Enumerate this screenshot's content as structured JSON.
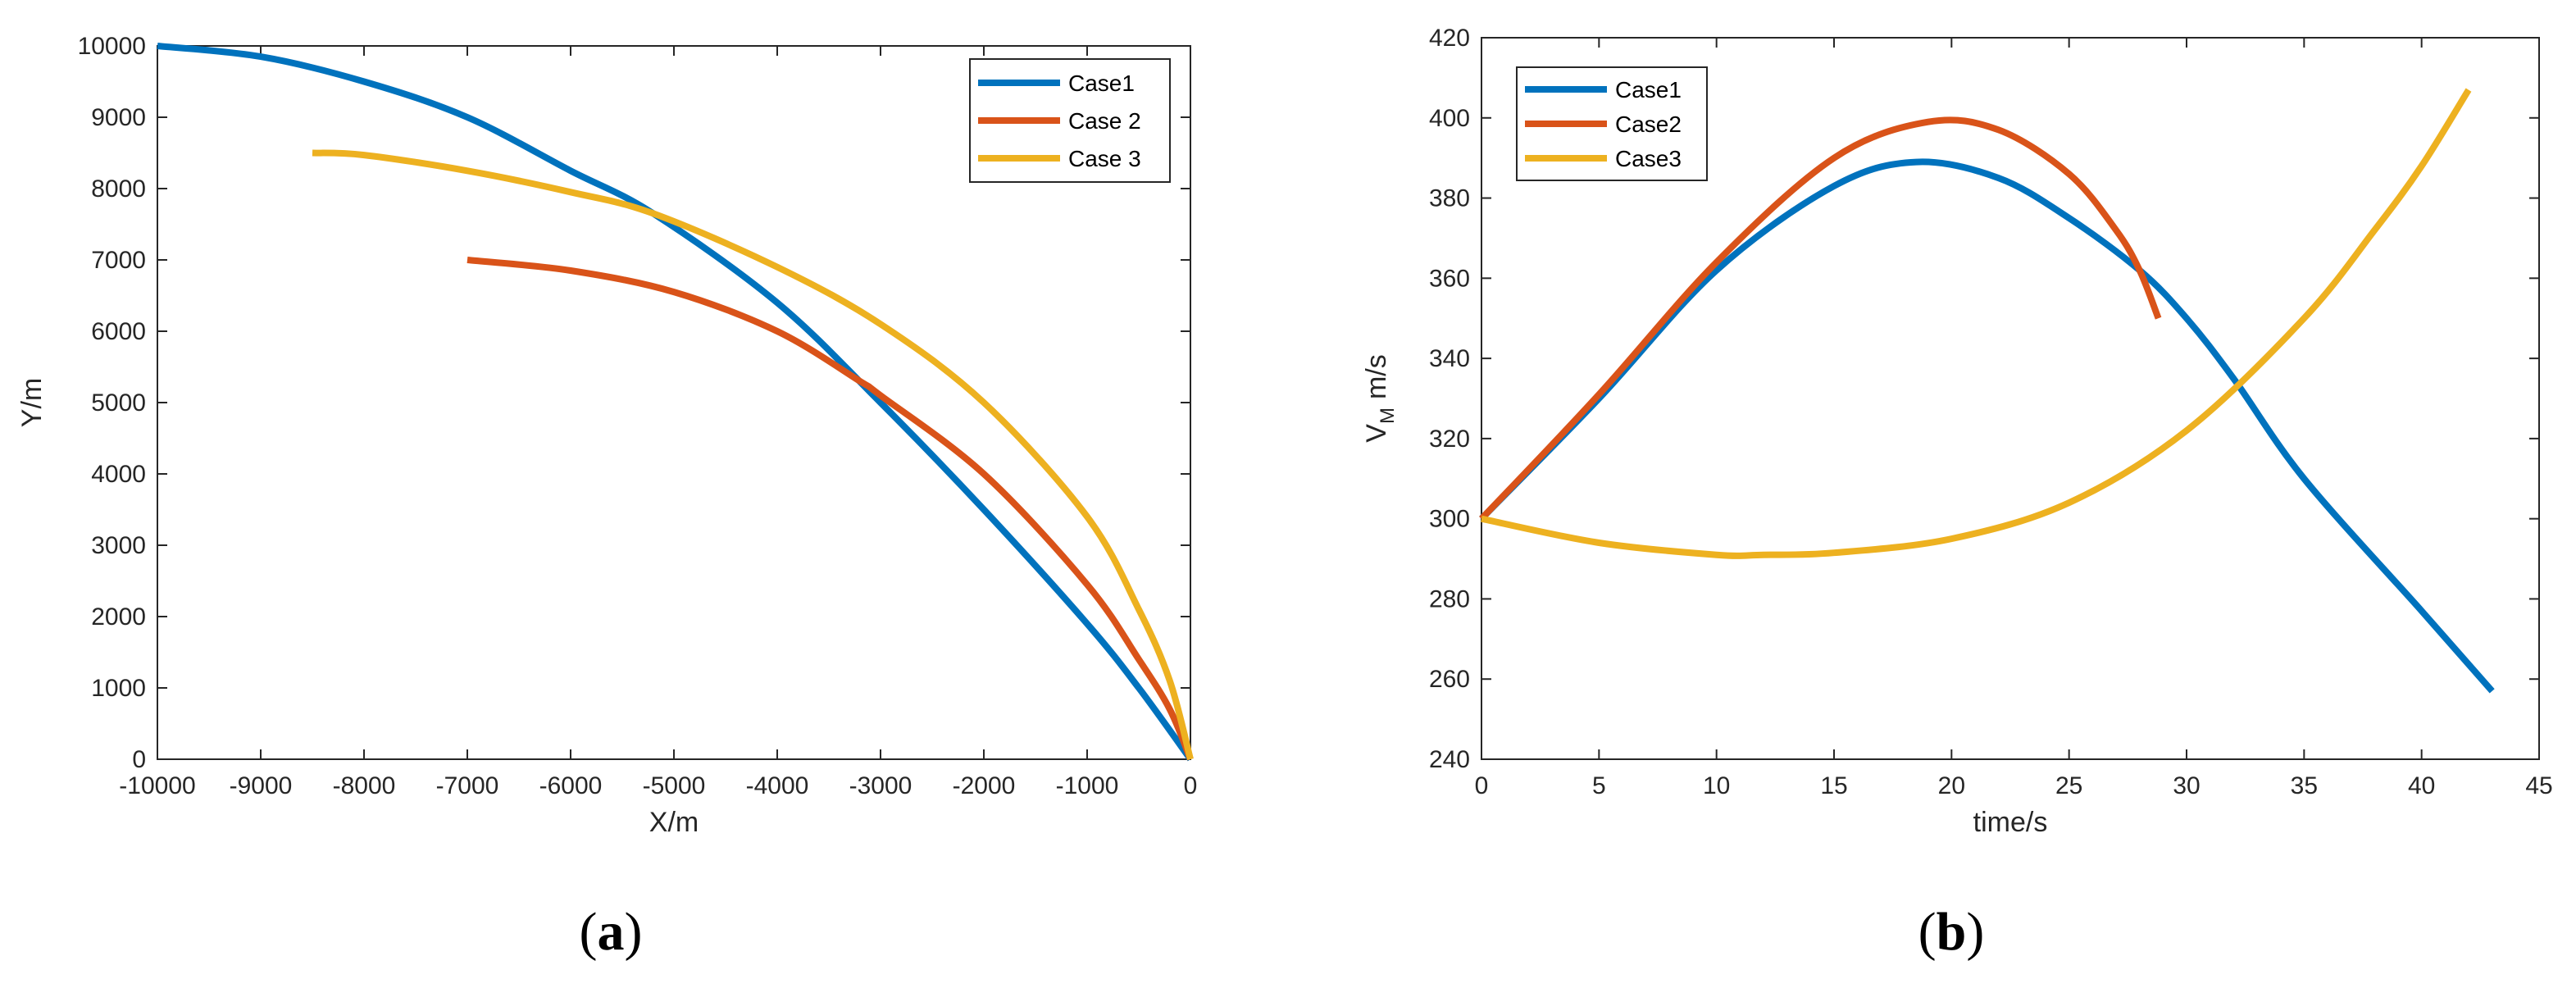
{
  "colors": {
    "case1": "#0072BD",
    "case2": "#D95319",
    "case3": "#EDB120"
  },
  "panels": {
    "a": {
      "label": "a"
    },
    "b": {
      "label": "b"
    }
  },
  "chart_data": [
    {
      "type": "line",
      "panel": "a",
      "xlabel": "X/m",
      "ylabel": "Y/m",
      "xlim": [
        -10000,
        0
      ],
      "ylim": [
        0,
        10000
      ],
      "xticks": [
        -10000,
        -9000,
        -8000,
        -7000,
        -6000,
        -5000,
        -4000,
        -3000,
        -2000,
        -1000,
        0
      ],
      "yticks": [
        0,
        1000,
        2000,
        3000,
        4000,
        5000,
        6000,
        7000,
        8000,
        9000,
        10000
      ],
      "legend_position": "top-right",
      "series": [
        {
          "name": "Case1",
          "color": "#0072BD",
          "x": [
            -10000,
            -9000,
            -8000,
            -7000,
            -6000,
            -5200,
            -4000,
            -3000,
            -2000,
            -1000,
            -500,
            0
          ],
          "y": [
            10000,
            9850,
            9500,
            9000,
            8250,
            7650,
            6400,
            5000,
            3500,
            1900,
            1000,
            0
          ]
        },
        {
          "name": "Case 2",
          "color": "#D95319",
          "x": [
            -7000,
            -6000,
            -5000,
            -4000,
            -3200,
            -3000,
            -2000,
            -1000,
            -500,
            -200,
            0
          ],
          "y": [
            7000,
            6850,
            6550,
            6000,
            5300,
            5100,
            4000,
            2450,
            1400,
            700,
            0
          ]
        },
        {
          "name": "Case 3",
          "color": "#EDB120",
          "x": [
            -8500,
            -8000,
            -7000,
            -6000,
            -5200,
            -4000,
            -3000,
            -2000,
            -1000,
            -500,
            -200,
            0
          ],
          "y": [
            8500,
            8470,
            8250,
            7950,
            7650,
            6900,
            6100,
            5000,
            3400,
            2100,
            1100,
            0
          ]
        }
      ]
    },
    {
      "type": "line",
      "panel": "b",
      "xlabel": "time/s",
      "ylabel": "V",
      "ylabel_subscript": "M",
      "ylabel_unit": "m/s",
      "xlim": [
        0,
        45
      ],
      "ylim": [
        240,
        420
      ],
      "xticks": [
        0,
        5,
        10,
        15,
        20,
        25,
        30,
        35,
        40,
        45
      ],
      "yticks": [
        240,
        260,
        280,
        300,
        320,
        340,
        360,
        380,
        400,
        420
      ],
      "legend_position": "top-left",
      "series": [
        {
          "name": "Case1",
          "color": "#0072BD",
          "x": [
            0,
            5,
            10,
            15,
            18.5,
            22,
            25,
            28,
            30,
            32,
            35,
            40,
            43
          ],
          "y": [
            300,
            330,
            362,
            383,
            389,
            385,
            375,
            362,
            350,
            335,
            310,
            277,
            257
          ]
        },
        {
          "name": "Case2",
          "color": "#D95319",
          "x": [
            0,
            5,
            10,
            15,
            19,
            22,
            25,
            27,
            28,
            28.8
          ],
          "y": [
            300,
            331,
            364,
            390,
            399,
            397,
            386,
            372,
            362,
            350
          ]
        },
        {
          "name": "Case3",
          "color": "#EDB120",
          "x": [
            0,
            5,
            10,
            12,
            15,
            20,
            25,
            30,
            35,
            38,
            40,
            42
          ],
          "y": [
            300,
            294,
            291,
            291,
            291.5,
            295,
            304,
            322,
            350,
            372,
            388,
            407
          ]
        }
      ]
    }
  ]
}
